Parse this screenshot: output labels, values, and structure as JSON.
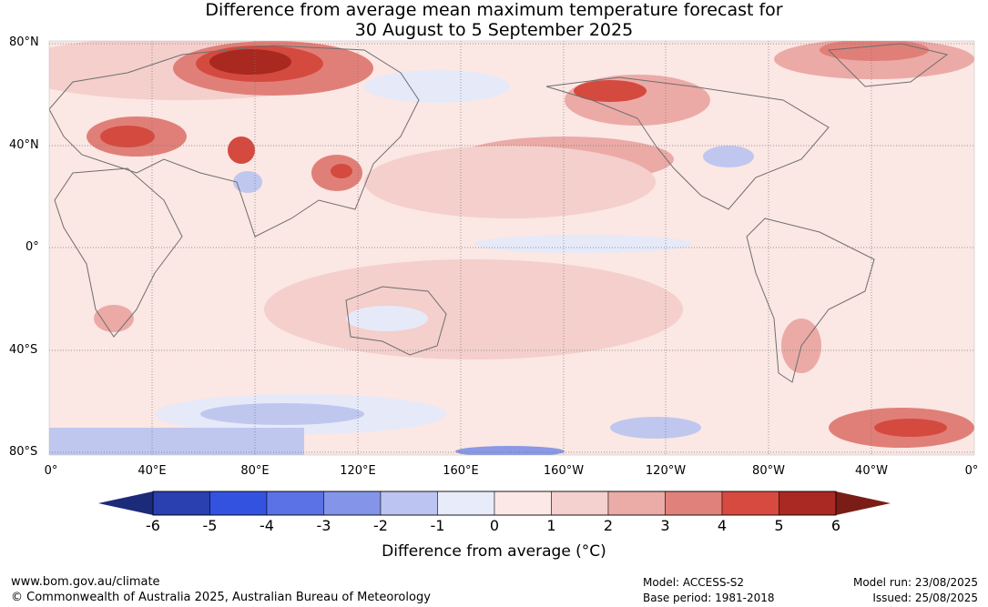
{
  "title": {
    "line1": "Difference from average mean maximum temperature forecast for",
    "line2": "30 August to 5 September 2025"
  },
  "map": {
    "lat_labels": [
      "80°N",
      "40°N",
      "0°",
      "40°S",
      "80°S"
    ],
    "lon_labels": [
      "0°",
      "40°E",
      "80°E",
      "120°E",
      "160°E",
      "160°W",
      "120°W",
      "80°W",
      "40°W",
      "0°"
    ],
    "palette": {
      "neutral_light": "#fbe7e4",
      "warm1": "#f4cfcc",
      "warm2": "#ebaaa6",
      "warm3": "#e07f78",
      "warm4": "#d44a3f",
      "warm5": "#a9281f",
      "cool1": "#e6e9f8",
      "cool2": "#c0c7ef",
      "cool3": "#8a98e6",
      "land_outline": "#6e6e6e"
    }
  },
  "colorbar": {
    "ticks": [
      "-6",
      "-5",
      "-4",
      "-3",
      "-2",
      "-1",
      "0",
      "1",
      "2",
      "3",
      "4",
      "5",
      "6"
    ],
    "colors": [
      "#2a3fb0",
      "#3352e0",
      "#5a72e6",
      "#8494e9",
      "#bcc4f1",
      "#e8ebf9",
      "#fce9e7",
      "#f4d1ce",
      "#ebaba6",
      "#e0827b",
      "#d64a3f",
      "#aa2922"
    ],
    "under_color": "#1c2a7a",
    "over_color": "#7a1d17",
    "label": "Difference from average (°C)"
  },
  "footer": {
    "website": "www.bom.gov.au/climate",
    "copyright": "© Commonwealth of Australia 2025, Australian Bureau of Meteorology",
    "model": "Model: ACCESS-S2",
    "base_period": "Base period: 1981-2018",
    "model_run": "Model run: 23/08/2025",
    "issued": "Issued: 25/08/2025"
  }
}
